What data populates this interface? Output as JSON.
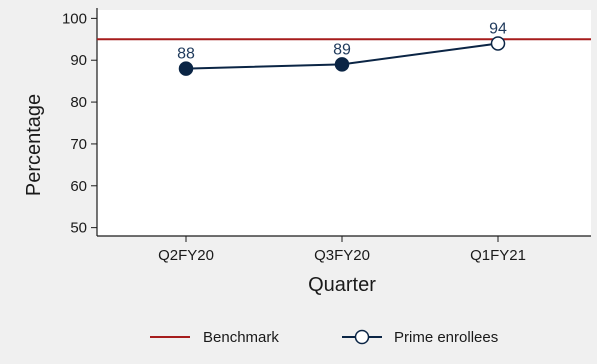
{
  "chart_data": {
    "type": "line",
    "categories": [
      "Q2FY20",
      "Q3FY20",
      "Q1FY21"
    ],
    "series": [
      {
        "name": "Prime enrollees",
        "values": [
          88,
          89,
          94
        ],
        "color": "#0b2545",
        "point_fills": [
          "#0b2545",
          "#0b2545",
          "#ffffff"
        ]
      }
    ],
    "benchmark": {
      "name": "Benchmark",
      "value": 95,
      "color": "#a61c1c"
    },
    "data_labels": [
      "88",
      "89",
      "94"
    ],
    "xlabel": "Quarter",
    "ylabel": "Percentage",
    "ylim": [
      48,
      102
    ],
    "yticks": [
      50,
      60,
      70,
      80,
      90,
      100
    ],
    "grid": false,
    "legend_position": "bottom",
    "colors": {
      "background": "#f0f0f0",
      "plot_background": "#ffffff",
      "axis": "#1a1a1a"
    }
  }
}
